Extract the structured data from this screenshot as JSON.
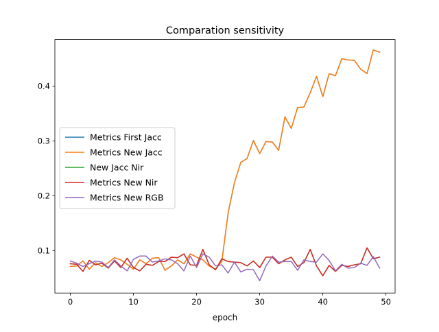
{
  "chart_data": {
    "type": "line",
    "title": "Comparation sensitivity",
    "xlabel": "epoch",
    "ylabel": "",
    "xlim": [
      -2.45,
      51.45
    ],
    "ylim": [
      0.0225,
      0.4852
    ],
    "xticks": [
      0,
      10,
      20,
      30,
      40,
      50
    ],
    "yticks": [
      0.1,
      0.2,
      0.3,
      0.4
    ],
    "ytick_labels": [
      "0.1",
      "0.2",
      "0.3",
      "0.4"
    ],
    "legend_position": "center-left",
    "grid": false,
    "series": [
      {
        "name": "Metrics First Jacc",
        "color": "#1f77b4",
        "values": [
          0.071,
          0.072,
          0.081,
          0.066,
          0.078,
          0.071,
          0.078,
          0.087,
          0.083,
          0.075,
          0.066,
          0.083,
          0.076,
          0.086,
          0.087,
          0.064,
          0.072,
          0.083,
          0.076,
          0.094,
          0.088,
          0.083,
          0.072,
          0.066,
          0.08,
          0.169,
          0.224,
          0.261,
          0.268,
          0.301,
          0.277,
          0.299,
          0.298,
          0.283,
          0.344,
          0.323,
          0.361,
          0.362,
          0.388,
          0.418,
          0.381,
          0.423,
          0.419,
          0.45,
          0.448,
          0.447,
          0.431,
          0.423,
          0.466,
          0.462
        ]
      },
      {
        "name": "Metrics New Jacc",
        "color": "#ff7f0e",
        "values": [
          0.071,
          0.072,
          0.081,
          0.066,
          0.078,
          0.071,
          0.078,
          0.087,
          0.083,
          0.075,
          0.066,
          0.083,
          0.076,
          0.086,
          0.087,
          0.064,
          0.072,
          0.083,
          0.076,
          0.094,
          0.088,
          0.083,
          0.072,
          0.066,
          0.08,
          0.169,
          0.224,
          0.261,
          0.268,
          0.301,
          0.277,
          0.299,
          0.298,
          0.283,
          0.344,
          0.323,
          0.361,
          0.362,
          0.388,
          0.418,
          0.381,
          0.423,
          0.419,
          0.45,
          0.448,
          0.447,
          0.431,
          0.423,
          0.466,
          0.462
        ]
      },
      {
        "name": "New Jacc Nir",
        "color": "#2ca02c",
        "values": [
          0.076,
          0.075,
          0.062,
          0.082,
          0.074,
          0.077,
          0.068,
          0.081,
          0.069,
          0.086,
          0.069,
          0.063,
          0.075,
          0.073,
          0.08,
          0.08,
          0.088,
          0.087,
          0.094,
          0.074,
          0.073,
          0.102,
          0.074,
          0.065,
          0.085,
          0.08,
          0.079,
          0.078,
          0.072,
          0.081,
          0.069,
          0.088,
          0.088,
          0.076,
          0.083,
          0.088,
          0.071,
          0.078,
          0.102,
          0.072,
          0.054,
          0.073,
          0.062,
          0.073,
          0.071,
          0.074,
          0.076,
          0.105,
          0.085,
          0.088
        ]
      },
      {
        "name": "Metrics New Nir",
        "color": "#d62728",
        "values": [
          0.076,
          0.075,
          0.062,
          0.082,
          0.074,
          0.077,
          0.068,
          0.081,
          0.069,
          0.086,
          0.069,
          0.063,
          0.075,
          0.073,
          0.08,
          0.08,
          0.088,
          0.087,
          0.094,
          0.074,
          0.073,
          0.102,
          0.074,
          0.065,
          0.085,
          0.08,
          0.079,
          0.078,
          0.072,
          0.081,
          0.069,
          0.088,
          0.088,
          0.076,
          0.083,
          0.088,
          0.071,
          0.078,
          0.102,
          0.072,
          0.054,
          0.073,
          0.062,
          0.073,
          0.071,
          0.074,
          0.076,
          0.105,
          0.085,
          0.088
        ]
      },
      {
        "name": "Metrics New RGB",
        "color": "#9467bd",
        "values": [
          0.081,
          0.077,
          0.071,
          0.076,
          0.081,
          0.079,
          0.069,
          0.083,
          0.072,
          0.063,
          0.084,
          0.09,
          0.09,
          0.079,
          0.081,
          0.085,
          0.083,
          0.076,
          0.063,
          0.09,
          0.069,
          0.094,
          0.088,
          0.072,
          0.074,
          0.059,
          0.079,
          0.061,
          0.066,
          0.065,
          0.045,
          0.072,
          0.09,
          0.079,
          0.08,
          0.08,
          0.064,
          0.083,
          0.08,
          0.079,
          0.094,
          0.082,
          0.063,
          0.075,
          0.068,
          0.069,
          0.077,
          0.073,
          0.089,
          0.068
        ]
      }
    ]
  }
}
